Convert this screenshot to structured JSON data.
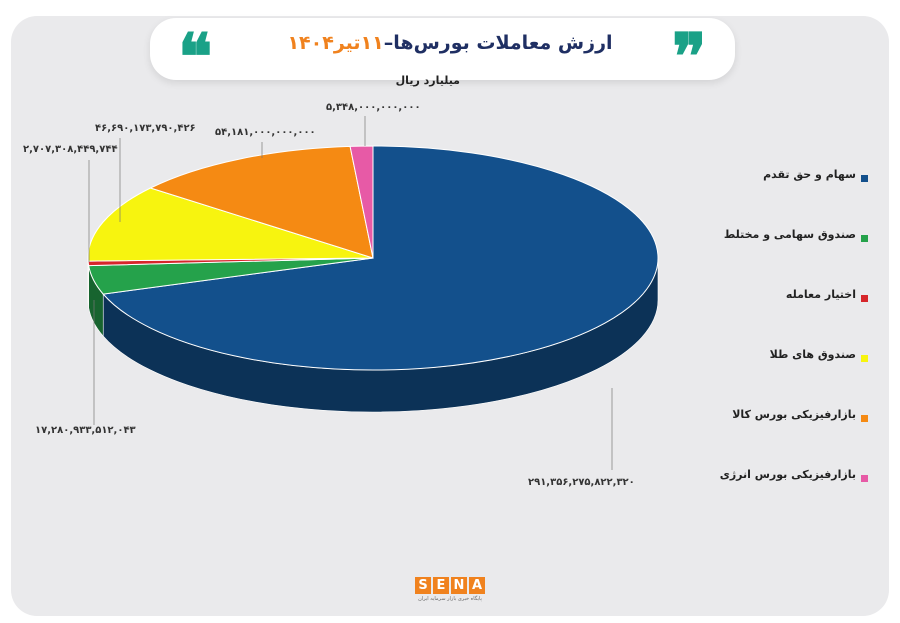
{
  "title": {
    "main": "ارزش معاملات بورس‌ها–",
    "date": "۱۱تیر۱۴۰۴",
    "quote_open": "❝",
    "quote_close": "❞"
  },
  "subtitle": "میلیارد ریال",
  "colors": {
    "title_text": "#1f2f63",
    "date_accent": "#f0821e",
    "quote": "#1aa187",
    "card_bg": "#eaeaec"
  },
  "chart_data": {
    "type": "pie",
    "three_d": true,
    "series": [
      {
        "name": "سهام و حق تقدم",
        "value": 291356275822320,
        "label": "۲۹۱,۳۵۶,۲۷۵,۸۲۲,۳۲۰",
        "color": "#13508c"
      },
      {
        "name": "صندوق سهامی و مختلط",
        "value": 17280933512043,
        "label": "۱۷,۲۸۰,۹۳۳,۵۱۲,۰۴۳",
        "color": "#25a24b"
      },
      {
        "name": "اختیار معامله",
        "value": 2707308449744,
        "label": "۲,۷۰۷,۳۰۸,۴۴۹,۷۴۴",
        "color": "#d6262b"
      },
      {
        "name": "صندوق های طلا",
        "value": 46690173790426,
        "label": "۴۶,۶۹۰,۱۷۳,۷۹۰,۴۲۶",
        "color": "#f7f40f"
      },
      {
        "name": "بازارفیزیکی بورس کالا",
        "value": 54181000000000,
        "label": "۵۴,۱۸۱,۰۰۰,۰۰۰,۰۰۰",
        "color": "#f58a13"
      },
      {
        "name": "بازارفیزیکی بورس انرژی",
        "value": 5348000000000,
        "label": "۵,۳۴۸,۰۰۰,۰۰۰,۰۰۰",
        "color": "#e75aa6"
      }
    ],
    "legend_position": "right"
  },
  "logo": {
    "letters": [
      "S",
      "E",
      "N",
      "A"
    ],
    "tagline": "پایگاه خبری بازار سرمایه ایران"
  }
}
